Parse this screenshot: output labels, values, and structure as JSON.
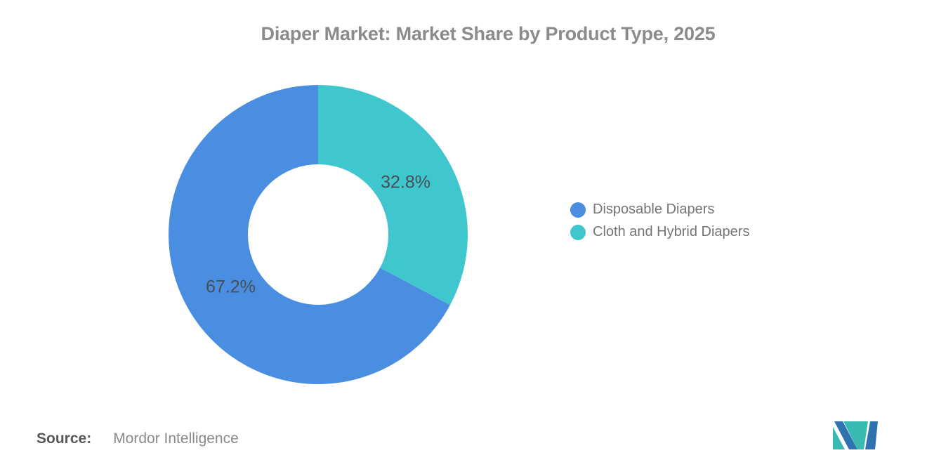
{
  "title": {
    "text": "Diaper Market: Market Share by Product Type, 2025"
  },
  "chart_data": {
    "type": "pie",
    "subtype": "donut",
    "title": "Diaper Market: Market Share by Product Type, 2025",
    "unit": "%",
    "series": [
      {
        "name": "Disposable Diapers",
        "value": 67.2,
        "label": "67.2%",
        "color": "#4A8EE2"
      },
      {
        "name": "Cloth and Hybrid Diapers",
        "value": 32.8,
        "label": "32.8%",
        "color": "#40C7CE"
      }
    ],
    "start_angle": "12-oclock",
    "sweep_direction": "counterclockwise",
    "inner_radius_ratio": 0.47,
    "slice_label_color": "#484E55",
    "slice_labels_inside": true,
    "legend_position": "right",
    "grid": false
  },
  "legend": {
    "items": [
      {
        "label": "Disposable Diapers"
      },
      {
        "label": "Cloth and Hybrid Diapers"
      }
    ],
    "text_color": "#757575"
  },
  "source": {
    "label": "Source:",
    "value": "Mordor Intelligence"
  },
  "logo": {
    "name": "Mordor Intelligence logo",
    "teal": "#38B9B2",
    "blue": "#2E72B0"
  },
  "colors": {
    "background": "#FFFFFF",
    "title_text": "#8B8B8B"
  }
}
